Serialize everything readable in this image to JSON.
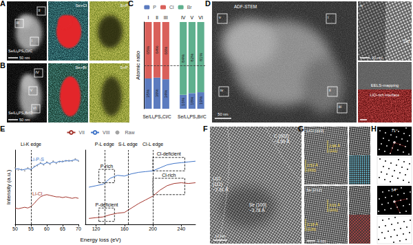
{
  "panels": {
    "A": {
      "letter": "A",
      "sample": "Se/Li₆PS₅Cl/C",
      "regions": [
        "I",
        "II",
        "III"
      ],
      "scale_bar": "50 nm",
      "maps": [
        "Se+Cl",
        "S+P"
      ]
    },
    "B": {
      "letter": "B",
      "sample": "Se/Li₆PS₅Br/C",
      "regions": [
        "IV",
        "V",
        "VI"
      ],
      "scale_bar": "50 nm",
      "maps": [
        "Se+Br",
        "S+P"
      ]
    },
    "D": {
      "letter": "D",
      "title": "ADF-STEM",
      "regions": [
        "i",
        "ii",
        "iii",
        "iv",
        "v"
      ],
      "scale_bar": "50 nm",
      "inset": {
        "label": "iv",
        "scale_bar": "20 nm",
        "element": "Se"
      },
      "eels": {
        "title": "EELS-mapping",
        "label": "LiCl-rich interface"
      }
    },
    "F": {
      "letter": "F",
      "labels": [
        [
          "LiCl",
          "(111)",
          "~2.91 Å"
        ],
        [
          "Se (100)",
          "~3.78 Å"
        ],
        [
          "C (002)",
          "~3.39 Å"
        ]
      ],
      "scale_bar": "10 nm"
    },
    "G": {
      "letter": "G",
      "images": [
        {
          "title": "LiCl [110]",
          "spacings": [
            [
              "2.96 Å",
              "(111)"
            ],
            [
              "2.52 Å",
              "(002)"
            ]
          ]
        },
        {
          "title": "Se [212]",
          "spacings": [
            [
              "3.01 Å",
              "(101)"
            ],
            [
              "2.18 Å",
              "(120)"
            ]
          ]
        }
      ],
      "scale_bar": "1 nm"
    },
    "H": {
      "letter": "H",
      "angles": [
        "71°",
        "54°"
      ]
    }
  },
  "chart_data": [
    {
      "type": "bar",
      "panel": "C",
      "ylabel": "Atomic ratio",
      "categories": [
        "I",
        "II",
        "III",
        null,
        "IV",
        "V",
        "VI"
      ],
      "groups": [
        {
          "label": "Se/Li₆PS₅Cl/C",
          "categories": [
            "I",
            "III"
          ]
        },
        {
          "label": "Se/Li₆PS₅Br/C",
          "categories": [
            "IV",
            "VI"
          ]
        }
      ],
      "series": [
        {
          "name": "P",
          "color": "#5b7bbf",
          "values": [
            35,
            36,
            34,
            null,
            16,
            18,
            19
          ],
          "value_labels": [
            "35%",
            "36%",
            "34%",
            null,
            "16%",
            "18%",
            "19%"
          ]
        },
        {
          "name": "Cl",
          "color": "#d9605a",
          "values": [
            65,
            64,
            66,
            null,
            null,
            null,
            null
          ],
          "value_labels": [
            "65%",
            "64%",
            "66%",
            null,
            null,
            null,
            null
          ]
        },
        {
          "name": "Br",
          "color": "#5fb08e",
          "values": [
            null,
            null,
            null,
            null,
            84,
            82,
            81
          ],
          "value_labels": [
            null,
            null,
            null,
            null,
            "84%",
            "82%",
            "81%"
          ]
        }
      ],
      "ylim": [
        0,
        100
      ],
      "reference_line": 50,
      "stacked": true,
      "data_labels": true,
      "legend": "top",
      "tick_labels": "x",
      "grid": false
    },
    {
      "type": "line",
      "panel": "E",
      "xlabel": "Energy loss (eV)",
      "ylabel": "Intensity (a.u.)",
      "ylim": [
        0,
        1
      ],
      "tick_labels": "x",
      "legend": "top",
      "grid": false,
      "series": [
        {
          "name": "VII",
          "color": "#a3342c"
        },
        {
          "name": "VIII",
          "color": "#3f74c8"
        },
        {
          "name": "Raw",
          "color": "#8c8c8c",
          "type": "scatter",
          "marker": "circle"
        }
      ],
      "subplots": [
        {
          "xlim": [
            50,
            70
          ],
          "xticks": [
            50,
            55,
            60,
            65,
            70
          ],
          "edges": [
            {
              "label": "Li-K edge",
              "x": 55
            }
          ],
          "x": [
            50,
            51,
            52,
            53,
            54,
            55,
            56,
            57,
            58,
            59,
            60,
            61,
            62,
            63,
            64,
            65,
            66,
            67,
            68,
            69,
            70
          ],
          "series": [
            {
              "name": "VIII",
              "label": "Li-P-S",
              "values": [
                0.74,
                0.75,
                0.73,
                0.74,
                0.75,
                0.74,
                0.77,
                0.8,
                0.82,
                0.81,
                0.83,
                0.82,
                0.84,
                0.83,
                0.85,
                0.84,
                0.86,
                0.85,
                0.86,
                0.87,
                0.86
              ]
            },
            {
              "name": "VII",
              "label": "Li-Cl",
              "values": [
                0.22,
                0.21,
                0.22,
                0.23,
                0.22,
                0.24,
                0.28,
                0.33,
                0.37,
                0.39,
                0.4,
                0.39,
                0.38,
                0.37,
                0.37,
                0.36,
                0.37,
                0.36,
                0.35,
                0.36,
                0.35
              ]
            },
            {
              "name": "Raw",
              "values": [
                0.76,
                0.73,
                0.74,
                0.72,
                0.76,
                0.73,
                0.78,
                0.79,
                0.83,
                0.8,
                0.84,
                0.81,
                0.85,
                0.82,
                0.84,
                0.85,
                0.85,
                0.86,
                0.85,
                0.88,
                0.85
              ]
            }
          ]
        },
        {
          "xlim": [
            105,
            260
          ],
          "xticks": [
            120,
            160,
            200,
            240
          ],
          "edges": [
            {
              "label": "P-L edge",
              "x": 132
            },
            {
              "label": "S-L edge",
              "x": 165
            },
            {
              "label": "Cl-L edge",
              "x": 200
            }
          ],
          "x": [
            110,
            120,
            130,
            140,
            150,
            160,
            170,
            180,
            190,
            200,
            210,
            220,
            230,
            240,
            250,
            260
          ],
          "series": [
            {
              "name": "VIII",
              "values": [
                0.5,
                0.52,
                0.54,
                0.62,
                0.66,
                0.65,
                0.68,
                0.7,
                0.71,
                0.72,
                0.76,
                0.8,
                0.82,
                0.83,
                0.84,
                0.85
              ]
            },
            {
              "name": "VII",
              "values": [
                0.08,
                0.09,
                0.1,
                0.13,
                0.15,
                0.16,
                0.22,
                0.28,
                0.33,
                0.38,
                0.46,
                0.52,
                0.55,
                0.56,
                0.55,
                0.56
              ]
            }
          ],
          "boxes": [
            {
              "label": "P-rich",
              "x": [
                124,
                146
              ],
              "y": [
                0.56,
                0.74
              ]
            },
            {
              "label": "P-deficient",
              "x": [
                124,
                146
              ],
              "y": [
                0.04,
                0.22
              ]
            },
            {
              "label": "Cl-deficient",
              "x": [
                200,
                245
              ],
              "y": [
                0.72,
                0.9
              ]
            },
            {
              "label": "Cl-rich",
              "x": [
                200,
                245
              ],
              "y": [
                0.4,
                0.62
              ]
            }
          ]
        }
      ]
    }
  ]
}
